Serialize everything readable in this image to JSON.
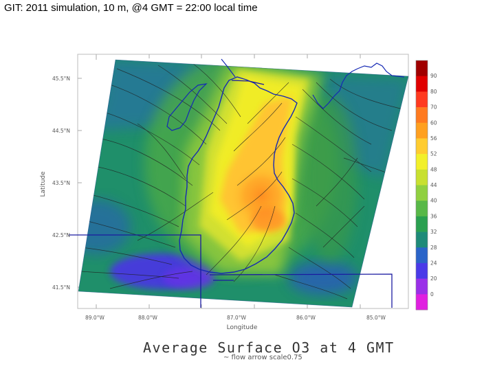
{
  "slide": {
    "title": "GIT: 2011 simulation, 10 m, @4 GMT = 22:00 local time"
  },
  "map": {
    "title": "Average Surface O3 at 4 GMT",
    "subtitle": "~ flow arrow scale0.75",
    "xlabel": "Longitude",
    "ylabel": "Latitude",
    "lon_ticks": [
      "89.0°W",
      "88.0°W",
      "87.0°W",
      "86.0°W",
      "85.0°W"
    ],
    "lat_ticks": [
      "45.5°N",
      "44.5°N",
      "43.5°N",
      "42.5°N",
      "41.5°N"
    ],
    "colorbar": {
      "labels": [
        "90",
        "80",
        "70",
        "60",
        "56",
        "52",
        "48",
        "44",
        "40",
        "36",
        "32",
        "28",
        "24",
        "20",
        "0"
      ],
      "colors": [
        "#a00000",
        "#e00000",
        "#ff3a20",
        "#ff7a20",
        "#ffa020",
        "#ffcc30",
        "#f2f02a",
        "#c8e030",
        "#90d040",
        "#58b848",
        "#2aa050",
        "#1e8a78",
        "#2a64c8",
        "#4a3ae8",
        "#9a30e8",
        "#e020e0"
      ]
    },
    "colors": {
      "lake_outline": "#1428b4",
      "border": "#1a1aa0",
      "streamline": "#202020"
    }
  }
}
